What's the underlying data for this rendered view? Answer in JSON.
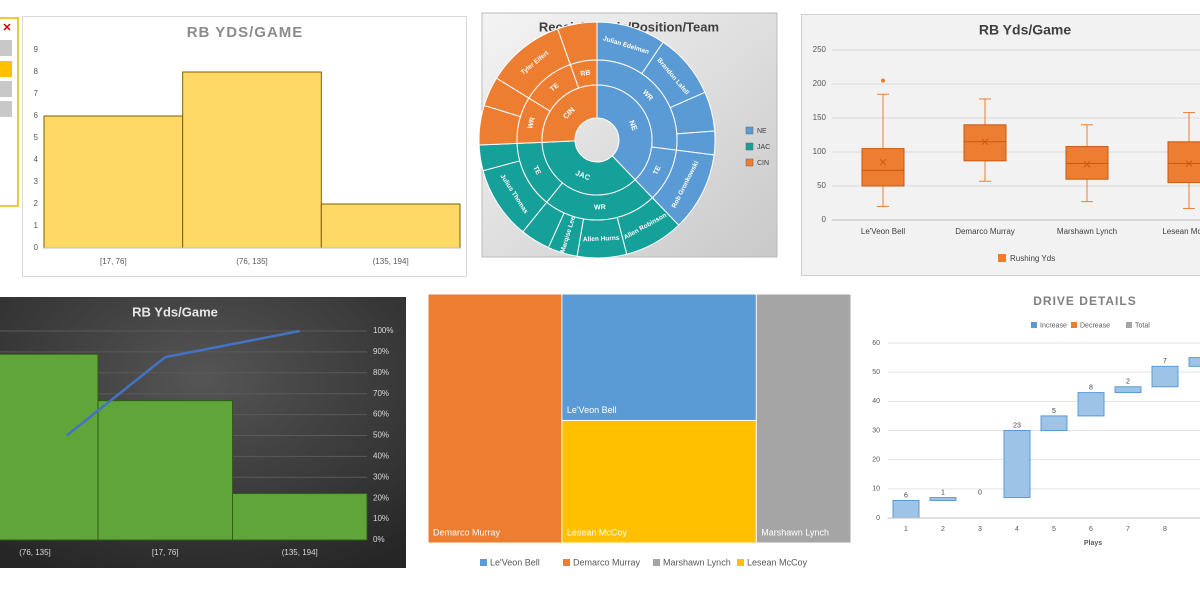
{
  "chart_data": [
    {
      "type": "bar",
      "title": "RB YDS/GAME",
      "categories": [
        "[17, 76]",
        "(76, 135]",
        "(135, 194]"
      ],
      "values": [
        6,
        8,
        2
      ],
      "color": "#ffd966",
      "ylim": [
        0,
        9
      ],
      "yticks": [
        0,
        1,
        2,
        3,
        4,
        5,
        6,
        7,
        8,
        9
      ],
      "grid": false
    },
    {
      "type": "sunburst",
      "title": "Receiving Yds/Position/Team",
      "teams": [
        {
          "name": "NE",
          "color": "#5b9bd5",
          "positions": [
            {
              "name": "WR",
              "players": [
                {
                  "name": "Julian Edelman",
                  "value": 350
                },
                {
                  "name": "Brandon Lafell",
                  "value": 330
                },
                {
                  "name": null,
                  "value": 200
                },
                {
                  "name": null,
                  "value": 120
                }
              ]
            },
            {
              "name": "TE",
              "players": [
                {
                  "name": "Rob Gronkowski",
                  "value": 400
                }
              ]
            }
          ]
        },
        {
          "name": "JAC",
          "color": "#16a09a",
          "positions": [
            {
              "name": "WR",
              "players": [
                {
                  "name": "Allen Robinson",
                  "value": 300
                },
                {
                  "name": "Allen Hurns",
                  "value": 250
                },
                {
                  "name": "Marqise Lee",
                  "value": 150
                },
                {
                  "name": null,
                  "value": 150
                }
              ]
            },
            {
              "name": "TE",
              "players": [
                {
                  "name": "Julius Thomas",
                  "value": 370
                },
                {
                  "name": null,
                  "value": 130
                }
              ]
            }
          ]
        },
        {
          "name": "CIN",
          "color": "#ed7d31",
          "positions": [
            {
              "name": "WR",
              "players": [
                {
                  "name": null,
                  "value": 200
                },
                {
                  "name": null,
                  "value": 150
                }
              ]
            },
            {
              "name": "TE",
              "players": [
                {
                  "name": "Tyler Eifert",
                  "value": 400
                }
              ]
            },
            {
              "name": "RB",
              "players": [
                {
                  "name": null,
                  "value": 200
                }
              ]
            }
          ]
        }
      ]
    },
    {
      "type": "box",
      "title": "RB Yds/Game",
      "categories": [
        "Le'Veon Bell",
        "Demarco Murray",
        "Marshawn Lynch",
        "Lesean McCoy"
      ],
      "series": [
        {
          "name": "Rushing Yds",
          "color": "#ed7d31",
          "min": [
            20,
            57,
            27,
            17
          ],
          "q1": [
            50,
            87,
            60,
            55
          ],
          "median": [
            73,
            115,
            83,
            83
          ],
          "mean": [
            85,
            115,
            82,
            83
          ],
          "q3": [
            105,
            140,
            108,
            115
          ],
          "max": [
            185,
            178,
            140,
            158
          ],
          "outliers": [
            [
              205
            ],
            [],
            [],
            []
          ]
        }
      ],
      "ylim": [
        0,
        250
      ],
      "yticks": [
        0,
        50,
        100,
        150,
        200,
        250
      ],
      "grid": true
    },
    {
      "type": "pareto",
      "title": "RB Yds/Game",
      "categories": [
        "(76, 135]",
        "[17, 76]",
        "(135, 194]"
      ],
      "values": [
        8,
        6,
        2
      ],
      "color": "#5fa53a",
      "ylim": [
        0,
        9
      ],
      "series": [
        {
          "values": [
            50,
            87.5,
            100
          ],
          "color": "#4472c4",
          "axis": "y2"
        }
      ],
      "y2lim": [
        0,
        100
      ],
      "y2ticks": [
        {
          "value": 0,
          "label": "0%"
        },
        {
          "value": 10,
          "label": "10%"
        },
        {
          "value": 20,
          "label": "20%"
        },
        {
          "value": 30,
          "label": "30%"
        },
        {
          "value": 40,
          "label": "40%"
        },
        {
          "value": 50,
          "label": "50%"
        },
        {
          "value": 60,
          "label": "60%"
        },
        {
          "value": 70,
          "label": "70%"
        },
        {
          "value": 80,
          "label": "80%"
        },
        {
          "value": 90,
          "label": "90%"
        },
        {
          "value": 100,
          "label": "100%"
        }
      ],
      "grid": true
    },
    {
      "type": "treemap",
      "categories": [
        "Le'Veon Bell",
        "Demarco Murray",
        "Marshawn Lynch",
        "Lesean McCoy"
      ],
      "values": [
        1361,
        1845,
        1306,
        1319
      ],
      "colors": [
        "#5b9bd5",
        "#ed7d31",
        "#a5a5a5",
        "#ffc000"
      ]
    },
    {
      "type": "waterfall",
      "title": "DRIVE DETAILS",
      "legend": [
        {
          "name": "Increase",
          "color": "#5b9bd5"
        },
        {
          "name": "Decrease",
          "color": "#ed7d31"
        },
        {
          "name": "Total",
          "color": "#a5a5a5"
        }
      ],
      "categories": [
        "1",
        "2",
        "3",
        "4",
        "5",
        "6",
        "7",
        "8",
        null
      ],
      "values": [
        6,
        1,
        0,
        23,
        5,
        8,
        2,
        7,
        3
      ],
      "xlabel": "Plays",
      "ylim": [
        0,
        60
      ],
      "yticks": [
        0,
        10,
        20,
        30,
        40,
        50,
        60
      ],
      "grid": true
    }
  ]
}
